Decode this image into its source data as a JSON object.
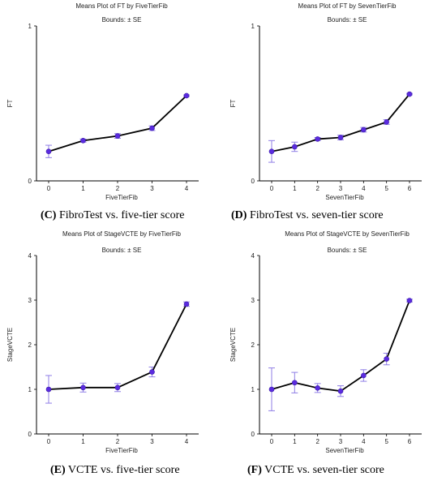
{
  "panels": [
    {
      "caption_letter": "(C)",
      "caption_text": " FibroTest vs. five-tier score"
    },
    {
      "caption_letter": "(D)",
      "caption_text": " FibroTest vs. seven-tier score"
    },
    {
      "caption_letter": "(E)",
      "caption_text": " VCTE vs. five-tier score"
    },
    {
      "caption_letter": "(F)",
      "caption_text": " VCTE vs. seven-tier score"
    }
  ],
  "chart_data": [
    {
      "type": "line",
      "title": "Means Plot of FT by FiveTierFib",
      "subtitle": "Bounds:  ± SE",
      "xlabel": "FiveTierFib",
      "ylabel": "FT",
      "x": [
        0,
        1,
        2,
        3,
        4
      ],
      "xticks": [
        "0",
        "1",
        "2",
        "3",
        "4"
      ],
      "yticks": [
        "0",
        "1"
      ],
      "ylim": [
        0,
        1
      ],
      "series": [
        {
          "values": [
            0.19,
            0.26,
            0.29,
            0.34,
            0.55
          ],
          "se": [
            0.04,
            0.01,
            0.015,
            0.015,
            0.005
          ]
        }
      ],
      "colors": {
        "line": "#000000",
        "marker": "#5b2be0",
        "errorbar": "#8f7ee6"
      }
    },
    {
      "type": "line",
      "title": "Means Plot of FT by SevenTierFib",
      "subtitle": "Bounds:  ± SE",
      "xlabel": "SevenTierFib",
      "ylabel": "FT",
      "x": [
        0,
        1,
        2,
        3,
        4,
        5,
        6
      ],
      "xticks": [
        "0",
        "1",
        "2",
        "3",
        "4",
        "5",
        "6"
      ],
      "yticks": [
        "0",
        "1"
      ],
      "ylim": [
        0,
        1
      ],
      "series": [
        {
          "values": [
            0.19,
            0.22,
            0.27,
            0.28,
            0.33,
            0.38,
            0.56
          ],
          "se": [
            0.07,
            0.03,
            0.01,
            0.015,
            0.015,
            0.015,
            0.005
          ]
        }
      ],
      "colors": {
        "line": "#000000",
        "marker": "#5b2be0",
        "errorbar": "#8f7ee6"
      }
    },
    {
      "type": "line",
      "title": "Means Plot of StageVCTE by FiveTierFib",
      "subtitle": "Bounds:  ± SE",
      "xlabel": "FiveTierFib",
      "ylabel": "StageVCTE",
      "x": [
        0,
        1,
        2,
        3,
        4
      ],
      "xticks": [
        "0",
        "1",
        "2",
        "3",
        "4"
      ],
      "yticks": [
        "0",
        "1",
        "2",
        "3",
        "4"
      ],
      "ylim": [
        0,
        4
      ],
      "series": [
        {
          "values": [
            1.0,
            1.04,
            1.04,
            1.39,
            2.91
          ],
          "se": [
            0.31,
            0.1,
            0.09,
            0.11,
            0.05
          ]
        }
      ],
      "colors": {
        "line": "#000000",
        "marker": "#5b2be0",
        "errorbar": "#8f7ee6"
      }
    },
    {
      "type": "line",
      "title": "Means Plot of StageVCTE by SevenTierFib",
      "subtitle": "Bounds:  ± SE",
      "xlabel": "SevenTierFib",
      "ylabel": "StageVCTE",
      "x": [
        0,
        1,
        2,
        3,
        4,
        5,
        6
      ],
      "xticks": [
        "0",
        "1",
        "2",
        "3",
        "4",
        "5",
        "6"
      ],
      "yticks": [
        "0",
        "1",
        "2",
        "3",
        "4"
      ],
      "ylim": [
        0,
        4
      ],
      "series": [
        {
          "values": [
            1.0,
            1.15,
            1.03,
            0.96,
            1.31,
            1.68,
            2.99
          ],
          "se": [
            0.48,
            0.23,
            0.1,
            0.12,
            0.13,
            0.13,
            0.03
          ]
        }
      ],
      "colors": {
        "line": "#000000",
        "marker": "#5b2be0",
        "errorbar": "#8f7ee6"
      }
    }
  ]
}
